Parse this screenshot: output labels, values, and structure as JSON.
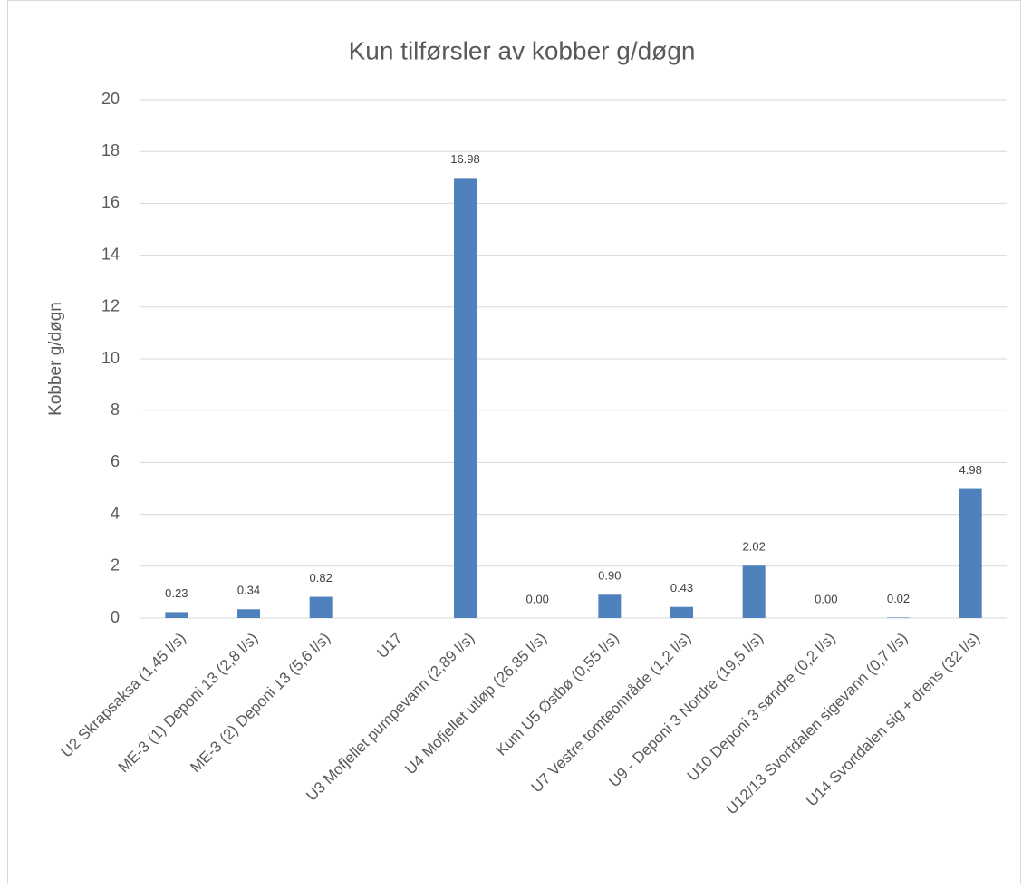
{
  "chart_data": {
    "type": "bar",
    "title": "Kun tilførsler av kobber g/døgn",
    "y_label": "Kobber  g/døgn",
    "categories": [
      "U2 Skrapsaksa (1,45 l/s)",
      "ME-3 (1) Deponi 13 (2,8 l/s)",
      "ME-3 (2) Deponi 13 (5,6 l/s)",
      "U17",
      "U3 Mofjellet pumpevann (2,89 l/s)",
      "U4 Mofjellet utløp (26,85 l/s)",
      "Kum U5 Østbø (0,55 l/s)",
      "U7 Vestre tomteområde (1,2 l/s)",
      "U9 - Deponi 3 Nordre (19,5 l/s)",
      "U10 Deponi 3 søndre (0,2 l/s)",
      "U12/13 Svortdalen sigevann (0,7 l/s)",
      "U14 Svortdalen sig + drens (32 l/s)"
    ],
    "values": [
      0.23,
      0.34,
      0.82,
      null,
      16.98,
      0,
      0.9,
      0.43,
      2.02,
      0,
      0.02,
      4.98
    ],
    "value_labels": [
      "0.23",
      "0.34",
      "0.82",
      null,
      "16.98",
      "0.00",
      "0.90",
      "0.43",
      "2.02",
      "0.00",
      "0.02",
      "4.98"
    ],
    "color": "#4f81bd",
    "ylim": [
      0,
      20
    ],
    "yticks": [
      0,
      2,
      4,
      6,
      8,
      10,
      12,
      14,
      16,
      18,
      20
    ],
    "grid": true
  }
}
